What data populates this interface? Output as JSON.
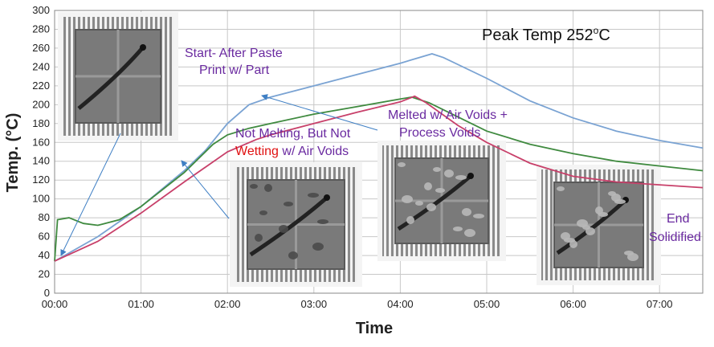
{
  "chart_data": {
    "type": "line",
    "title": "",
    "xlabel": "Time",
    "ylabel": "Temp. (°C)",
    "ylim": [
      0,
      300
    ],
    "xlim": [
      0,
      450
    ],
    "x_unit": "seconds",
    "x_ticks": [
      {
        "value": 0,
        "label": "00:00"
      },
      {
        "value": 60,
        "label": "01:00"
      },
      {
        "value": 120,
        "label": "02:00"
      },
      {
        "value": 180,
        "label": "03:00"
      },
      {
        "value": 240,
        "label": "04:00"
      },
      {
        "value": 300,
        "label": "05:00"
      },
      {
        "value": 360,
        "label": "06:00"
      },
      {
        "value": 420,
        "label": "07:00"
      }
    ],
    "y_ticks": [
      0,
      20,
      40,
      60,
      80,
      100,
      120,
      140,
      160,
      180,
      200,
      220,
      240,
      260,
      280,
      300
    ],
    "grid": true,
    "series": [
      {
        "color": "#7aa3d3",
        "points": [
          [
            0,
            34
          ],
          [
            30,
            60
          ],
          [
            60,
            92
          ],
          [
            90,
            130
          ],
          [
            105,
            152
          ],
          [
            120,
            180
          ],
          [
            135,
            200
          ],
          [
            150,
            208
          ],
          [
            180,
            220
          ],
          [
            210,
            232
          ],
          [
            240,
            244
          ],
          [
            262,
            254
          ],
          [
            270,
            250
          ],
          [
            300,
            228
          ],
          [
            330,
            204
          ],
          [
            360,
            186
          ],
          [
            390,
            172
          ],
          [
            420,
            162
          ],
          [
            450,
            154
          ]
        ]
      },
      {
        "color": "#3f8a3f",
        "points": [
          [
            0,
            34
          ],
          [
            2,
            78
          ],
          [
            10,
            80
          ],
          [
            20,
            74
          ],
          [
            30,
            72
          ],
          [
            45,
            78
          ],
          [
            60,
            92
          ],
          [
            90,
            128
          ],
          [
            110,
            158
          ],
          [
            120,
            168
          ],
          [
            135,
            175
          ],
          [
            150,
            180
          ],
          [
            180,
            190
          ],
          [
            210,
            198
          ],
          [
            240,
            206
          ],
          [
            248,
            208
          ],
          [
            260,
            202
          ],
          [
            300,
            172
          ],
          [
            330,
            158
          ],
          [
            360,
            148
          ],
          [
            390,
            140
          ],
          [
            420,
            135
          ],
          [
            450,
            130
          ]
        ]
      },
      {
        "color": "#c8406a",
        "points": [
          [
            0,
            34
          ],
          [
            30,
            55
          ],
          [
            60,
            85
          ],
          [
            90,
            118
          ],
          [
            120,
            150
          ],
          [
            140,
            163
          ],
          [
            150,
            168
          ],
          [
            180,
            180
          ],
          [
            210,
            192
          ],
          [
            240,
            203
          ],
          [
            250,
            209
          ],
          [
            258,
            202
          ],
          [
            280,
            178
          ],
          [
            300,
            160
          ],
          [
            330,
            138
          ],
          [
            360,
            124
          ],
          [
            390,
            118
          ],
          [
            420,
            115
          ],
          [
            450,
            112
          ]
        ]
      }
    ],
    "annotations": {
      "peak": {
        "text_main": "Peak Temp 252",
        "text_sup": "o",
        "text_unit": "C"
      },
      "start": {
        "line1": "Start- After Paste",
        "line2": "Print w/ Part"
      },
      "not_melting": {
        "line1": "Not Melting, But Not",
        "line2_red": "Wetting",
        "line2_rest": " w/ Air Voids"
      },
      "melted": {
        "line1": "Melted w/ Air Voids +",
        "line2": "Process Voids"
      },
      "end": {
        "line1": "End",
        "line2": "Solidified"
      }
    },
    "colors": {
      "annotation_text": "#6a2aa0",
      "highlight": "#e01010",
      "arrow": "#3f7fc4",
      "grid": "#c8c8c8"
    }
  }
}
